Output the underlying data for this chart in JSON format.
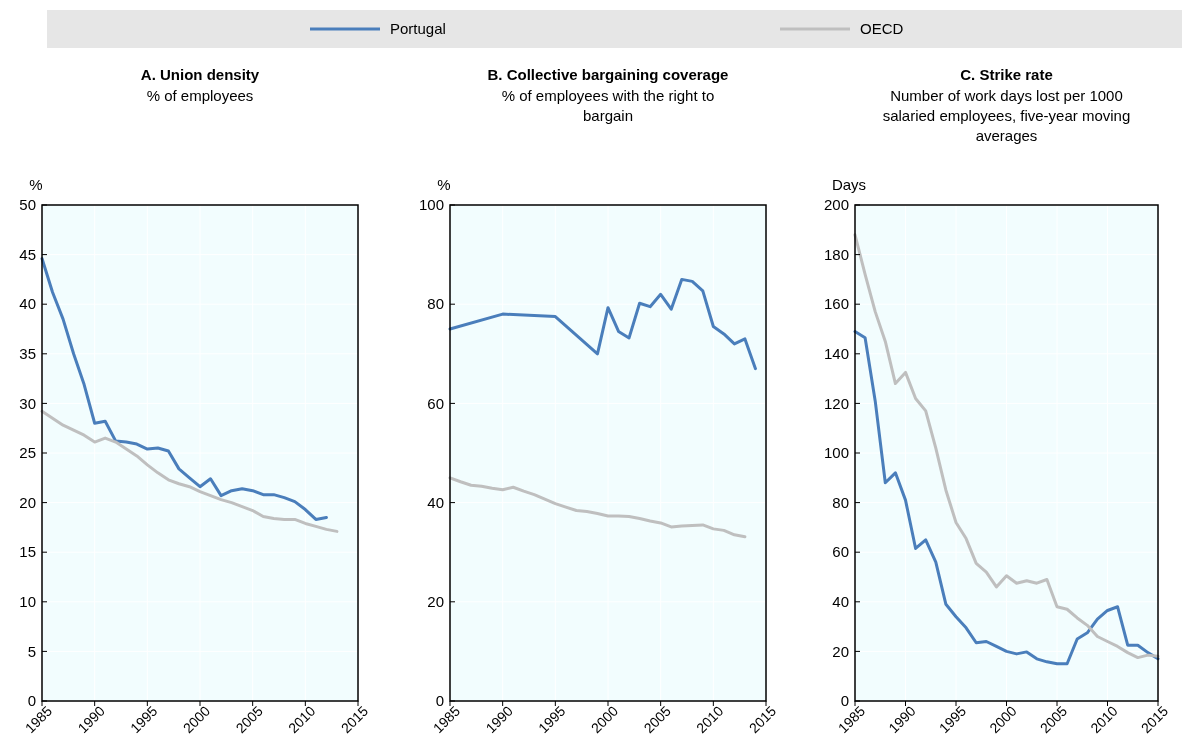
{
  "chart_data": [
    {
      "type": "line",
      "title": "A. Union density",
      "subtitle": "% of employees",
      "ylabel": "%",
      "xlim": [
        1985,
        2015
      ],
      "xticks": [
        1985,
        1990,
        1995,
        2000,
        2005,
        2010,
        2015
      ],
      "ylim": [
        0,
        50
      ],
      "yticks": [
        0,
        5,
        10,
        15,
        20,
        25,
        30,
        35,
        40,
        45,
        50
      ],
      "grid": true,
      "legend": "top",
      "line_style": "solid",
      "series": [
        {
          "name": "Portugal",
          "color": "#4a7ebb",
          "x": [
            1985,
            1986,
            1987,
            1988,
            1989,
            1990,
            1991,
            1992,
            1993,
            1994,
            1995,
            1996,
            1997,
            1998,
            1999,
            2000,
            2001,
            2002,
            2003,
            2004,
            2005,
            2006,
            2007,
            2008,
            2009,
            2010,
            2011,
            2012
          ],
          "values": [
            44.6,
            41.2,
            38.5,
            35,
            31.9,
            28,
            28.2,
            26.2,
            26.1,
            25.9,
            25.4,
            25.5,
            25.2,
            23.4,
            22.5,
            21.6,
            22.4,
            20.7,
            21.2,
            21.4,
            21.2,
            20.8,
            20.8,
            20.5,
            20.1,
            19.3,
            18.3,
            18.5
          ]
        },
        {
          "name": "OECD",
          "color": "#bfbfbf",
          "x": [
            1985,
            1986,
            1987,
            1988,
            1989,
            1990,
            1991,
            1992,
            1993,
            1994,
            1995,
            1996,
            1997,
            1998,
            1999,
            2000,
            2001,
            2002,
            2003,
            2004,
            2005,
            2006,
            2007,
            2008,
            2009,
            2010,
            2011,
            2012,
            2013
          ],
          "values": [
            29.2,
            28.5,
            27.8,
            27.3,
            26.8,
            26.1,
            26.5,
            26.1,
            25.4,
            24.7,
            23.8,
            23,
            22.3,
            21.9,
            21.6,
            21.1,
            20.7,
            20.3,
            20,
            19.6,
            19.2,
            18.6,
            18.4,
            18.3,
            18.3,
            17.9,
            17.6,
            17.3,
            17.1
          ]
        }
      ]
    },
    {
      "type": "line",
      "title": "B. Collective bargaining coverage",
      "subtitle": "% of employees with the right to bargain",
      "ylabel": "%",
      "xlim": [
        1985,
        2015
      ],
      "xticks": [
        1985,
        1990,
        1995,
        2000,
        2005,
        2010,
        2015
      ],
      "ylim": [
        0,
        100
      ],
      "yticks": [
        0,
        20,
        40,
        60,
        80,
        100
      ],
      "grid": true,
      "line_style": "solid",
      "series": [
        {
          "name": "Portugal",
          "color": "#4a7ebb",
          "x": [
            1985,
            1990,
            1995,
            1999,
            2000,
            2001,
            2002,
            2003,
            2004,
            2005,
            2006,
            2007,
            2008,
            2009,
            2010,
            2011,
            2012,
            2013,
            2014
          ],
          "values": [
            75,
            78,
            77.5,
            70,
            79.3,
            74.5,
            73.2,
            80.2,
            79.5,
            82,
            79,
            85,
            84.6,
            82.7,
            75.5,
            74,
            72,
            73,
            67
          ]
        },
        {
          "name": "OECD",
          "color": "#bfbfbf",
          "x": [
            1985,
            1986,
            1987,
            1988,
            1989,
            1990,
            1991,
            1992,
            1993,
            1994,
            1995,
            1996,
            1997,
            1998,
            1999,
            2000,
            2001,
            2002,
            2003,
            2004,
            2005,
            2006,
            2007,
            2008,
            2009,
            2010,
            2011,
            2012,
            2013
          ],
          "values": [
            45,
            44.2,
            43.5,
            43.3,
            42.9,
            42.6,
            43.1,
            42.3,
            41.6,
            40.7,
            39.8,
            39.1,
            38.4,
            38.2,
            37.8,
            37.3,
            37.3,
            37.2,
            36.8,
            36.3,
            35.9,
            35.1,
            35.3,
            35.4,
            35.5,
            34.7,
            34.4,
            33.5,
            33.1
          ]
        }
      ]
    },
    {
      "type": "line",
      "title": "C. Strike rate",
      "subtitle": "Number of work days lost per 1000 salaried employees, five-year moving averages",
      "ylabel": "Days",
      "xlim": [
        1985,
        2015
      ],
      "xticks": [
        1985,
        1990,
        1995,
        2000,
        2005,
        2010,
        2015
      ],
      "ylim": [
        0,
        200
      ],
      "yticks": [
        0,
        20,
        40,
        60,
        80,
        100,
        120,
        140,
        160,
        180,
        200
      ],
      "grid": true,
      "line_style": "solid",
      "series": [
        {
          "name": "Portugal",
          "color": "#4a7ebb",
          "x": [
            1985,
            1986,
            1987,
            1988,
            1989,
            1990,
            1991,
            1992,
            1993,
            1994,
            1995,
            1996,
            1997,
            1998,
            1999,
            2000,
            2001,
            2002,
            2003,
            2004,
            2005,
            2006,
            2007,
            2008,
            2009,
            2010,
            2011,
            2012,
            2013,
            2014,
            2015
          ],
          "values": [
            149,
            146.5,
            121,
            88,
            92,
            81,
            61.5,
            65,
            56,
            39,
            34,
            29.5,
            23.5,
            24,
            22,
            20,
            19,
            19.8,
            17,
            15.8,
            15,
            15,
            25,
            27.5,
            33,
            36.5,
            38,
            22.5,
            22.5,
            19.5,
            17
          ]
        },
        {
          "name": "OECD",
          "color": "#bfbfbf",
          "x": [
            1985,
            1986,
            1987,
            1988,
            1989,
            1990,
            1991,
            1992,
            1993,
            1994,
            1995,
            1996,
            1997,
            1998,
            1999,
            2000,
            2001,
            2002,
            2003,
            2004,
            2005,
            2006,
            2007,
            2008,
            2009,
            2010,
            2011,
            2012,
            2013,
            2014,
            2015
          ],
          "values": [
            188,
            172,
            157,
            145,
            128,
            132.5,
            122,
            117,
            102,
            85,
            72,
            65.5,
            55.5,
            52,
            46,
            50.5,
            47.5,
            48.5,
            47.5,
            49,
            38,
            37,
            33.5,
            30.5,
            26,
            24,
            22,
            19.5,
            17.5,
            18.5,
            18
          ]
        }
      ]
    }
  ]
}
